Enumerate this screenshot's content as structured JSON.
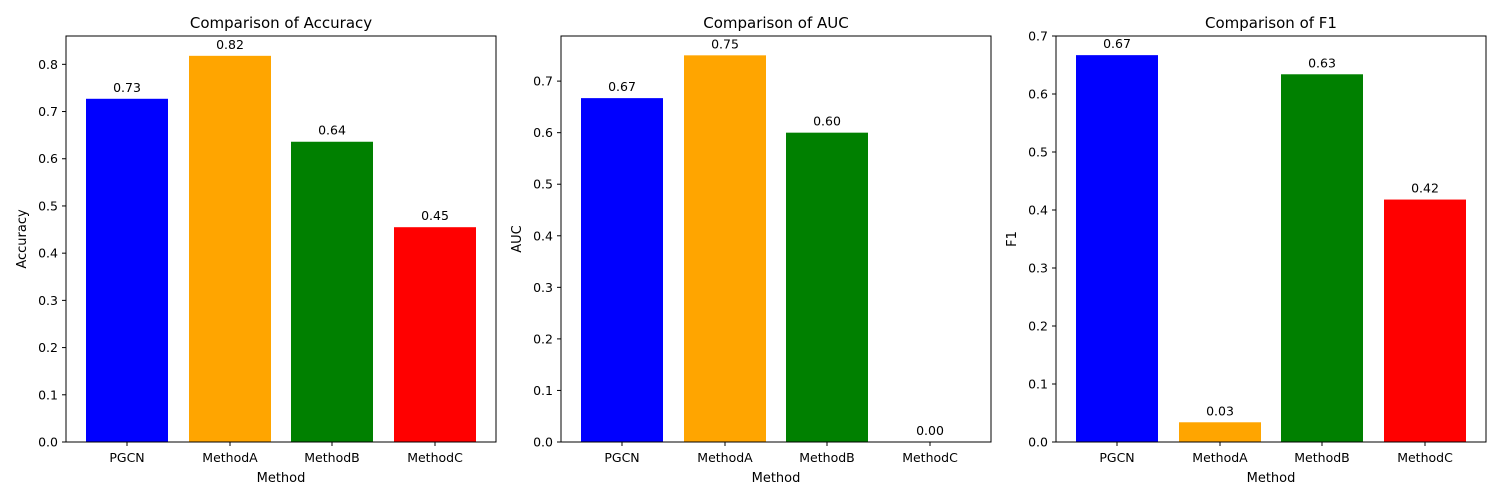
{
  "colors": {
    "PGCN": "#0000ff",
    "MethodA": "#ffa500",
    "MethodB": "#008000",
    "MethodC": "#ff0000"
  },
  "chart_data": [
    {
      "type": "bar",
      "title": "Comparison of Accuracy",
      "xlabel": "Method",
      "ylabel": "Accuracy",
      "categories": [
        "PGCN",
        "MethodA",
        "MethodB",
        "MethodC"
      ],
      "values": [
        0.727,
        0.818,
        0.636,
        0.455
      ],
      "labels": [
        "0.73",
        "0.82",
        "0.64",
        "0.45"
      ],
      "ylim": [
        0,
        0.86
      ],
      "yticks": [
        0.0,
        0.1,
        0.2,
        0.3,
        0.4,
        0.5,
        0.6,
        0.7,
        0.8
      ],
      "ytick_labels": [
        "0.0",
        "0.1",
        "0.2",
        "0.3",
        "0.4",
        "0.5",
        "0.6",
        "0.7",
        "0.8"
      ]
    },
    {
      "type": "bar",
      "title": "Comparison of AUC",
      "xlabel": "Method",
      "ylabel": "AUC",
      "categories": [
        "PGCN",
        "MethodA",
        "MethodB",
        "MethodC"
      ],
      "values": [
        0.667,
        0.75,
        0.6,
        0.0
      ],
      "labels": [
        "0.67",
        "0.75",
        "0.60",
        "0.00"
      ],
      "ylim": [
        0,
        0.7875
      ],
      "yticks": [
        0.0,
        0.1,
        0.2,
        0.3,
        0.4,
        0.5,
        0.6,
        0.7
      ],
      "ytick_labels": [
        "0.0",
        "0.1",
        "0.2",
        "0.3",
        "0.4",
        "0.5",
        "0.6",
        "0.7"
      ]
    },
    {
      "type": "bar",
      "title": "Comparison of F1",
      "xlabel": "Method",
      "ylabel": "F1",
      "categories": [
        "PGCN",
        "MethodA",
        "MethodB",
        "MethodC"
      ],
      "values": [
        0.667,
        0.034,
        0.634,
        0.418
      ],
      "labels": [
        "0.67",
        "0.03",
        "0.63",
        "0.42"
      ],
      "ylim": [
        0,
        0.7
      ],
      "yticks": [
        0.0,
        0.1,
        0.2,
        0.3,
        0.4,
        0.5,
        0.6,
        0.7
      ],
      "ytick_labels": [
        "0.0",
        "0.1",
        "0.2",
        "0.3",
        "0.4",
        "0.5",
        "0.6",
        "0.7"
      ]
    }
  ]
}
